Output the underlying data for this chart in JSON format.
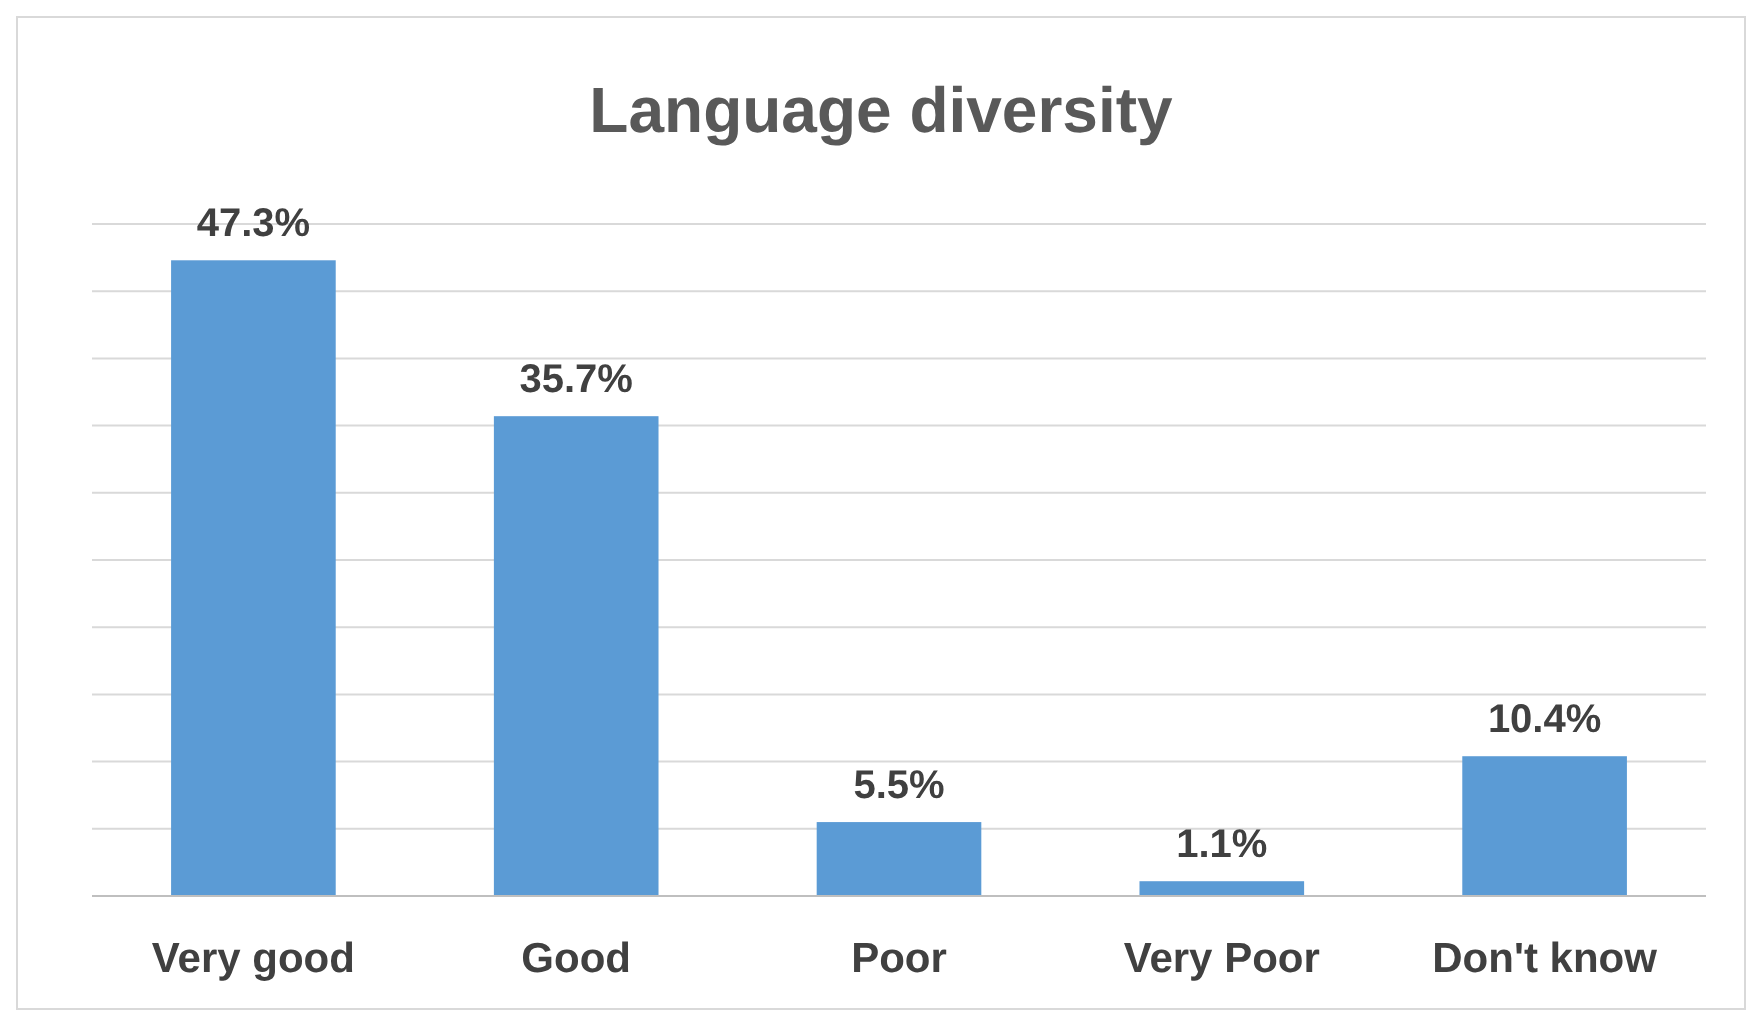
{
  "chart_data": {
    "type": "bar",
    "title": "Language diversity",
    "categories": [
      "Very good",
      "Good",
      "Poor",
      "Very Poor",
      "Don't know"
    ],
    "values": [
      47.3,
      35.7,
      5.5,
      1.1,
      10.4
    ],
    "value_labels": [
      "47.3%",
      "35.7%",
      "5.5%",
      "1.1%",
      "10.4%"
    ],
    "color": "#5b9bd5",
    "ylim": [
      0,
      50
    ],
    "yticks": [
      {
        "value": 0,
        "label": null
      },
      {
        "value": 5,
        "label": null
      },
      {
        "value": 10,
        "label": null
      },
      {
        "value": 15,
        "label": null
      },
      {
        "value": 20,
        "label": null
      },
      {
        "value": 25,
        "label": null
      },
      {
        "value": 30,
        "label": null
      },
      {
        "value": 35,
        "label": null
      },
      {
        "value": 40,
        "label": null
      },
      {
        "value": 45,
        "label": null
      },
      {
        "value": 50,
        "label": null
      }
    ],
    "grid": "y",
    "tick_labels": "x"
  }
}
